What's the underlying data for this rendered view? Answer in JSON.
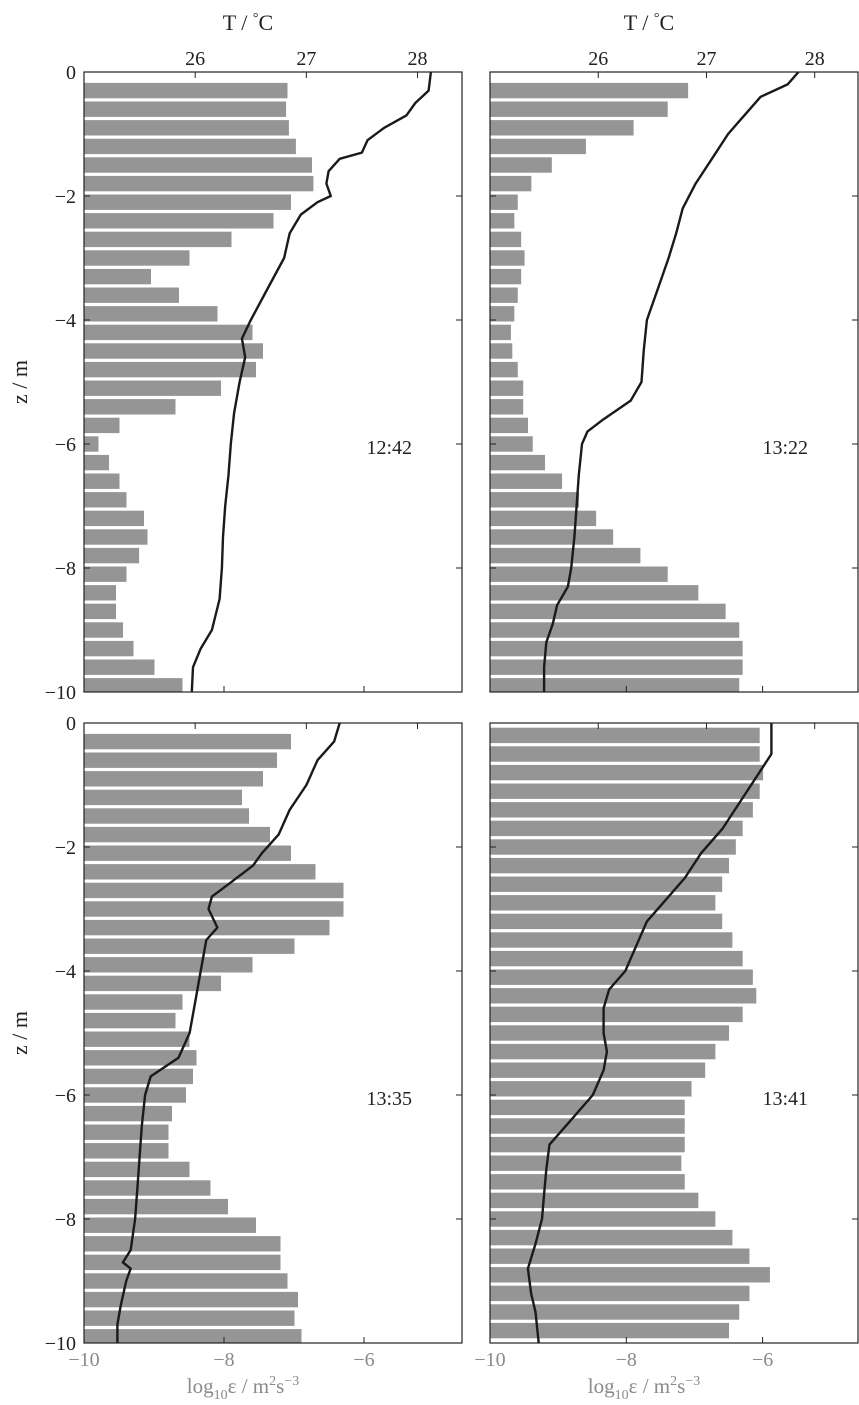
{
  "chart_data": {
    "type": "bar",
    "top_axis_label": "T / °C",
    "bottom_axis_label": "log10 ε / m2 s-3",
    "y_label": "z / m",
    "temperature_ticks": [
      26,
      27,
      28
    ],
    "dissipation_ticks": [
      -10,
      -8,
      -6
    ],
    "z_ticks": [
      0,
      -2,
      -4,
      -6,
      -8,
      -10
    ],
    "tlim": [
      25.0,
      28.4
    ],
    "elim": [
      -10,
      -4.6
    ],
    "zlim": [
      -10,
      0
    ],
    "bar_color": "#959595",
    "profile_color": "#1a1a1a",
    "panels": [
      {
        "time": "12:42",
        "bars": [
          {
            "z": -0.3,
            "v": -7.1
          },
          {
            "z": -0.6,
            "v": -7.12
          },
          {
            "z": -0.9,
            "v": -7.08
          },
          {
            "z": -1.2,
            "v": -6.98
          },
          {
            "z": -1.5,
            "v": -6.75
          },
          {
            "z": -1.8,
            "v": -6.73
          },
          {
            "z": -2.1,
            "v": -7.05
          },
          {
            "z": -2.4,
            "v": -7.3
          },
          {
            "z": -2.7,
            "v": -7.9
          },
          {
            "z": -3.0,
            "v": -8.5
          },
          {
            "z": -3.3,
            "v": -9.05
          },
          {
            "z": -3.6,
            "v": -8.65
          },
          {
            "z": -3.9,
            "v": -8.1
          },
          {
            "z": -4.2,
            "v": -7.6
          },
          {
            "z": -4.5,
            "v": -7.45
          },
          {
            "z": -4.8,
            "v": -7.55
          },
          {
            "z": -5.1,
            "v": -8.05
          },
          {
            "z": -5.4,
            "v": -8.7
          },
          {
            "z": -5.7,
            "v": -9.5
          },
          {
            "z": -6.0,
            "v": -9.8
          },
          {
            "z": -6.3,
            "v": -9.65
          },
          {
            "z": -6.6,
            "v": -9.5
          },
          {
            "z": -6.9,
            "v": -9.4
          },
          {
            "z": -7.2,
            "v": -9.15
          },
          {
            "z": -7.5,
            "v": -9.1
          },
          {
            "z": -7.8,
            "v": -9.22
          },
          {
            "z": -8.1,
            "v": -9.4
          },
          {
            "z": -8.4,
            "v": -9.55
          },
          {
            "z": -8.7,
            "v": -9.55
          },
          {
            "z": -9.0,
            "v": -9.45
          },
          {
            "z": -9.3,
            "v": -9.3
          },
          {
            "z": -9.6,
            "v": -9.0
          },
          {
            "z": -9.9,
            "v": -8.6
          }
        ],
        "profile": [
          {
            "z": 0,
            "t": 28.12
          },
          {
            "z": -0.3,
            "t": 28.1
          },
          {
            "z": -0.5,
            "t": 27.98
          },
          {
            "z": -0.7,
            "t": 27.9
          },
          {
            "z": -0.9,
            "t": 27.7
          },
          {
            "z": -1.1,
            "t": 27.55
          },
          {
            "z": -1.3,
            "t": 27.5
          },
          {
            "z": -1.4,
            "t": 27.3
          },
          {
            "z": -1.6,
            "t": 27.2
          },
          {
            "z": -1.8,
            "t": 27.18
          },
          {
            "z": -2.0,
            "t": 27.22
          },
          {
            "z": -2.1,
            "t": 27.1
          },
          {
            "z": -2.3,
            "t": 26.95
          },
          {
            "z": -2.6,
            "t": 26.85
          },
          {
            "z": -3.0,
            "t": 26.8
          },
          {
            "z": -3.5,
            "t": 26.65
          },
          {
            "z": -4.0,
            "t": 26.5
          },
          {
            "z": -4.3,
            "t": 26.42
          },
          {
            "z": -4.6,
            "t": 26.45
          },
          {
            "z": -5.0,
            "t": 26.4
          },
          {
            "z": -5.5,
            "t": 26.35
          },
          {
            "z": -6.0,
            "t": 26.32
          },
          {
            "z": -6.5,
            "t": 26.3
          },
          {
            "z": -7.0,
            "t": 26.27
          },
          {
            "z": -7.5,
            "t": 26.25
          },
          {
            "z": -8.0,
            "t": 26.24
          },
          {
            "z": -8.5,
            "t": 26.22
          },
          {
            "z": -9.0,
            "t": 26.15
          },
          {
            "z": -9.3,
            "t": 26.05
          },
          {
            "z": -9.6,
            "t": 25.98
          },
          {
            "z": -10,
            "t": 25.97
          }
        ]
      },
      {
        "time": "13:22",
        "bars": [
          {
            "z": -0.3,
            "v": -7.1
          },
          {
            "z": -0.6,
            "v": -7.4
          },
          {
            "z": -0.9,
            "v": -7.9
          },
          {
            "z": -1.2,
            "v": -8.6
          },
          {
            "z": -1.5,
            "v": -9.1
          },
          {
            "z": -1.8,
            "v": -9.4
          },
          {
            "z": -2.1,
            "v": -9.6
          },
          {
            "z": -2.4,
            "v": -9.65
          },
          {
            "z": -2.7,
            "v": -9.55
          },
          {
            "z": -3.0,
            "v": -9.5
          },
          {
            "z": -3.3,
            "v": -9.55
          },
          {
            "z": -3.6,
            "v": -9.6
          },
          {
            "z": -3.9,
            "v": -9.65
          },
          {
            "z": -4.2,
            "v": -9.7
          },
          {
            "z": -4.5,
            "v": -9.68
          },
          {
            "z": -4.8,
            "v": -9.6
          },
          {
            "z": -5.1,
            "v": -9.52
          },
          {
            "z": -5.4,
            "v": -9.52
          },
          {
            "z": -5.7,
            "v": -9.45
          },
          {
            "z": -6.0,
            "v": -9.38
          },
          {
            "z": -6.3,
            "v": -9.2
          },
          {
            "z": -6.6,
            "v": -8.95
          },
          {
            "z": -6.9,
            "v": -8.7
          },
          {
            "z": -7.2,
            "v": -8.45
          },
          {
            "z": -7.5,
            "v": -8.2
          },
          {
            "z": -7.8,
            "v": -7.8
          },
          {
            "z": -8.1,
            "v": -7.4
          },
          {
            "z": -8.4,
            "v": -6.95
          },
          {
            "z": -8.7,
            "v": -6.55
          },
          {
            "z": -9.0,
            "v": -6.35
          },
          {
            "z": -9.3,
            "v": -6.3
          },
          {
            "z": -9.6,
            "v": -6.3
          },
          {
            "z": -9.9,
            "v": -6.35
          }
        ],
        "profile": [
          {
            "z": 0,
            "t": 27.85
          },
          {
            "z": -0.2,
            "t": 27.75
          },
          {
            "z": -0.4,
            "t": 27.5
          },
          {
            "z": -0.6,
            "t": 27.4
          },
          {
            "z": -0.8,
            "t": 27.3
          },
          {
            "z": -1.0,
            "t": 27.2
          },
          {
            "z": -1.4,
            "t": 27.05
          },
          {
            "z": -1.8,
            "t": 26.9
          },
          {
            "z": -2.2,
            "t": 26.78
          },
          {
            "z": -2.6,
            "t": 26.72
          },
          {
            "z": -3.0,
            "t": 26.65
          },
          {
            "z": -3.5,
            "t": 26.55
          },
          {
            "z": -4.0,
            "t": 26.45
          },
          {
            "z": -4.5,
            "t": 26.42
          },
          {
            "z": -5.0,
            "t": 26.4
          },
          {
            "z": -5.3,
            "t": 26.3
          },
          {
            "z": -5.6,
            "t": 26.05
          },
          {
            "z": -5.8,
            "t": 25.9
          },
          {
            "z": -6.0,
            "t": 25.85
          },
          {
            "z": -6.5,
            "t": 25.82
          },
          {
            "z": -7.0,
            "t": 25.8
          },
          {
            "z": -7.5,
            "t": 25.78
          },
          {
            "z": -8.0,
            "t": 25.75
          },
          {
            "z": -8.3,
            "t": 25.72
          },
          {
            "z": -8.6,
            "t": 25.62
          },
          {
            "z": -8.9,
            "t": 25.58
          },
          {
            "z": -9.2,
            "t": 25.52
          },
          {
            "z": -9.6,
            "t": 25.5
          },
          {
            "z": -10,
            "t": 25.5
          }
        ]
      },
      {
        "time": "13:35",
        "bars": [
          {
            "z": -0.3,
            "v": -7.05
          },
          {
            "z": -0.6,
            "v": -7.25
          },
          {
            "z": -0.9,
            "v": -7.45
          },
          {
            "z": -1.2,
            "v": -7.75
          },
          {
            "z": -1.5,
            "v": -7.65
          },
          {
            "z": -1.8,
            "v": -7.35
          },
          {
            "z": -2.1,
            "v": -7.05
          },
          {
            "z": -2.4,
            "v": -6.7
          },
          {
            "z": -2.7,
            "v": -6.3
          },
          {
            "z": -3.0,
            "v": -6.3
          },
          {
            "z": -3.3,
            "v": -6.5
          },
          {
            "z": -3.6,
            "v": -7.0
          },
          {
            "z": -3.9,
            "v": -7.6
          },
          {
            "z": -4.2,
            "v": -8.05
          },
          {
            "z": -4.5,
            "v": -8.6
          },
          {
            "z": -4.8,
            "v": -8.7
          },
          {
            "z": -5.1,
            "v": -8.5
          },
          {
            "z": -5.4,
            "v": -8.4
          },
          {
            "z": -5.7,
            "v": -8.45
          },
          {
            "z": -6.0,
            "v": -8.55
          },
          {
            "z": -6.3,
            "v": -8.75
          },
          {
            "z": -6.6,
            "v": -8.8
          },
          {
            "z": -6.9,
            "v": -8.8
          },
          {
            "z": -7.2,
            "v": -8.5
          },
          {
            "z": -7.5,
            "v": -8.2
          },
          {
            "z": -7.8,
            "v": -7.95
          },
          {
            "z": -8.1,
            "v": -7.55
          },
          {
            "z": -8.4,
            "v": -7.2
          },
          {
            "z": -8.7,
            "v": -7.2
          },
          {
            "z": -9.0,
            "v": -7.1
          },
          {
            "z": -9.3,
            "v": -6.95
          },
          {
            "z": -9.6,
            "v": -7.0
          },
          {
            "z": -9.9,
            "v": -6.9
          }
        ],
        "profile": [
          {
            "z": 0,
            "t": 27.3
          },
          {
            "z": -0.3,
            "t": 27.25
          },
          {
            "z": -0.6,
            "t": 27.1
          },
          {
            "z": -1.0,
            "t": 27.0
          },
          {
            "z": -1.4,
            "t": 26.85
          },
          {
            "z": -1.8,
            "t": 26.75
          },
          {
            "z": -2.1,
            "t": 26.6
          },
          {
            "z": -2.3,
            "t": 26.52
          },
          {
            "z": -2.6,
            "t": 26.3
          },
          {
            "z": -2.8,
            "t": 26.15
          },
          {
            "z": -3.0,
            "t": 26.12
          },
          {
            "z": -3.3,
            "t": 26.2
          },
          {
            "z": -3.5,
            "t": 26.1
          },
          {
            "z": -4.0,
            "t": 26.05
          },
          {
            "z": -4.5,
            "t": 26.0
          },
          {
            "z": -5.0,
            "t": 25.95
          },
          {
            "z": -5.4,
            "t": 25.85
          },
          {
            "z": -5.7,
            "t": 25.6
          },
          {
            "z": -6.0,
            "t": 25.55
          },
          {
            "z": -6.5,
            "t": 25.52
          },
          {
            "z": -7.0,
            "t": 25.5
          },
          {
            "z": -7.5,
            "t": 25.48
          },
          {
            "z": -8.0,
            "t": 25.46
          },
          {
            "z": -8.5,
            "t": 25.42
          },
          {
            "z": -8.7,
            "t": 25.35
          },
          {
            "z": -8.8,
            "t": 25.42
          },
          {
            "z": -9.0,
            "t": 25.38
          },
          {
            "z": -9.4,
            "t": 25.33
          },
          {
            "z": -9.7,
            "t": 25.3
          },
          {
            "z": -10,
            "t": 25.3
          }
        ]
      },
      {
        "time": "13:41",
        "bars": [
          {
            "z": -0.2,
            "v": -6.05
          },
          {
            "z": -0.5,
            "v": -6.05
          },
          {
            "z": -0.8,
            "v": -6.0
          },
          {
            "z": -1.1,
            "v": -6.05
          },
          {
            "z": -1.4,
            "v": -6.15
          },
          {
            "z": -1.7,
            "v": -6.3
          },
          {
            "z": -2.0,
            "v": -6.4
          },
          {
            "z": -2.3,
            "v": -6.5
          },
          {
            "z": -2.6,
            "v": -6.6
          },
          {
            "z": -2.9,
            "v": -6.7
          },
          {
            "z": -3.2,
            "v": -6.6
          },
          {
            "z": -3.5,
            "v": -6.45
          },
          {
            "z": -3.8,
            "v": -6.3
          },
          {
            "z": -4.1,
            "v": -6.15
          },
          {
            "z": -4.4,
            "v": -6.1
          },
          {
            "z": -4.7,
            "v": -6.3
          },
          {
            "z": -5.0,
            "v": -6.5
          },
          {
            "z": -5.3,
            "v": -6.7
          },
          {
            "z": -5.6,
            "v": -6.85
          },
          {
            "z": -5.9,
            "v": -7.05
          },
          {
            "z": -6.2,
            "v": -7.15
          },
          {
            "z": -6.5,
            "v": -7.15
          },
          {
            "z": -6.8,
            "v": -7.15
          },
          {
            "z": -7.1,
            "v": -7.2
          },
          {
            "z": -7.4,
            "v": -7.15
          },
          {
            "z": -7.7,
            "v": -6.95
          },
          {
            "z": -8.0,
            "v": -6.7
          },
          {
            "z": -8.3,
            "v": -6.45
          },
          {
            "z": -8.6,
            "v": -6.2
          },
          {
            "z": -8.9,
            "v": -5.9
          },
          {
            "z": -9.2,
            "v": -6.2
          },
          {
            "z": -9.5,
            "v": -6.35
          },
          {
            "z": -9.8,
            "v": -6.5
          }
        ],
        "profile": [
          {
            "z": 0,
            "t": 27.6
          },
          {
            "z": -0.5,
            "t": 27.6
          },
          {
            "z": -0.9,
            "t": 27.45
          },
          {
            "z": -1.3,
            "t": 27.3
          },
          {
            "z": -1.7,
            "t": 27.15
          },
          {
            "z": -2.1,
            "t": 26.95
          },
          {
            "z": -2.5,
            "t": 26.8
          },
          {
            "z": -2.9,
            "t": 26.6
          },
          {
            "z": -3.2,
            "t": 26.45
          },
          {
            "z": -3.6,
            "t": 26.35
          },
          {
            "z": -4.0,
            "t": 26.25
          },
          {
            "z": -4.3,
            "t": 26.1
          },
          {
            "z": -4.6,
            "t": 26.05
          },
          {
            "z": -5.0,
            "t": 26.05
          },
          {
            "z": -5.3,
            "t": 26.08
          },
          {
            "z": -5.6,
            "t": 26.05
          },
          {
            "z": -6.0,
            "t": 25.95
          },
          {
            "z": -6.4,
            "t": 25.75
          },
          {
            "z": -6.8,
            "t": 25.55
          },
          {
            "z": -7.2,
            "t": 25.52
          },
          {
            "z": -7.6,
            "t": 25.5
          },
          {
            "z": -8.0,
            "t": 25.48
          },
          {
            "z": -8.4,
            "t": 25.42
          },
          {
            "z": -8.8,
            "t": 25.35
          },
          {
            "z": -9.2,
            "t": 25.38
          },
          {
            "z": -9.5,
            "t": 25.42
          },
          {
            "z": -10,
            "t": 25.45
          }
        ]
      }
    ]
  }
}
